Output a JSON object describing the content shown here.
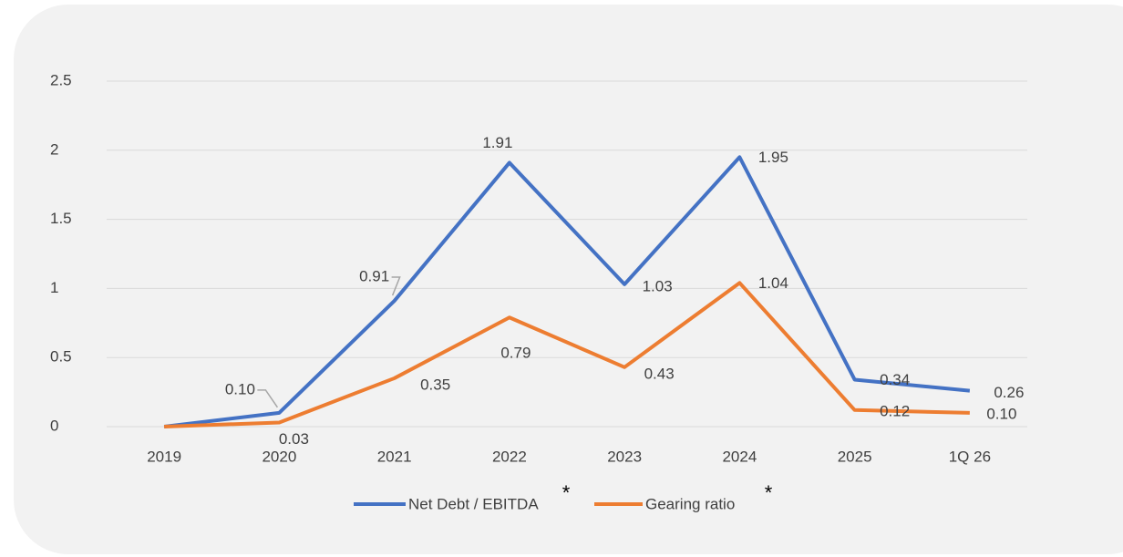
{
  "chart_data": {
    "type": "line",
    "categories": [
      "2019",
      "2020",
      "2021",
      "2022",
      "2023",
      "2024",
      "2025",
      "1Q 26"
    ],
    "series": [
      {
        "name": "Net Debt / EBITDA",
        "color": "#4472c4",
        "values": [
          0,
          0.1,
          0.91,
          1.91,
          1.03,
          1.95,
          0.34,
          0.26
        ],
        "value_labels": [
          null,
          "0.10",
          "0.91",
          "1.91",
          "1.03",
          "1.95",
          "0.34",
          "0.26"
        ]
      },
      {
        "name": "Gearing ratio",
        "color": "#ed7d31",
        "values": [
          0,
          0.03,
          0.35,
          0.79,
          0.43,
          1.04,
          0.12,
          0.1
        ],
        "value_labels": [
          null,
          "0.03",
          "0.35",
          "0.79",
          "0.43",
          "1.04",
          "0.12",
          "0.10"
        ]
      }
    ],
    "legend_notes": [
      "*",
      "*"
    ],
    "ylim": [
      0,
      2.5
    ],
    "yticks": [
      0,
      0.5,
      1,
      1.5,
      2,
      2.5
    ],
    "grid": true,
    "legend": "bottom"
  }
}
